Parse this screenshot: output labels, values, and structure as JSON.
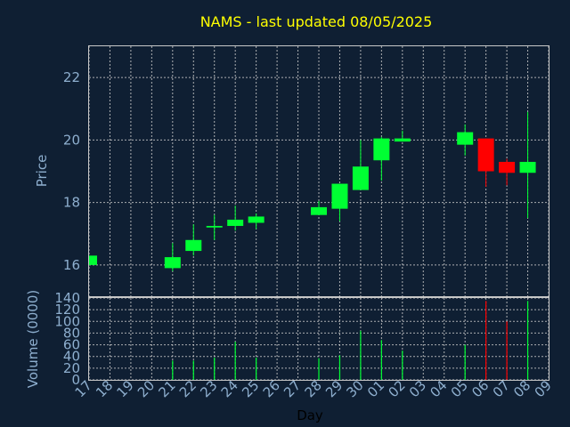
{
  "chart_data": [
    {
      "type": "candlestick",
      "title": "NAMS - last updated 08/05/2025",
      "xlabel": "Day",
      "ylabel": "Price",
      "ylim": [
        15,
        23
      ],
      "yticks": [
        16,
        18,
        20,
        22
      ],
      "grid": true,
      "x_ticks": [
        "17",
        "18",
        "19",
        "20",
        "21",
        "22",
        "23",
        "24",
        "25",
        "26",
        "27",
        "28",
        "29",
        "30",
        "01",
        "02",
        "03",
        "04",
        "05",
        "06",
        "07",
        "08",
        "09"
      ],
      "up_color": "#00ff33",
      "down_color": "#ff0000",
      "candles": [
        {
          "day": "17",
          "open": 16.0,
          "high": 16.3,
          "low": 16.0,
          "close": 16.3
        },
        {
          "day": "21",
          "open": 15.9,
          "high": 16.7,
          "low": 15.8,
          "close": 16.25
        },
        {
          "day": "22",
          "open": 16.45,
          "high": 17.3,
          "low": 16.3,
          "close": 16.8
        },
        {
          "day": "23",
          "open": 17.2,
          "high": 17.6,
          "low": 16.8,
          "close": 17.25
        },
        {
          "day": "24",
          "open": 17.25,
          "high": 17.9,
          "low": 17.1,
          "close": 17.45
        },
        {
          "day": "25",
          "open": 17.35,
          "high": 17.65,
          "low": 17.15,
          "close": 17.55
        },
        {
          "day": "28",
          "open": 17.6,
          "high": 18.05,
          "low": 17.6,
          "close": 17.85
        },
        {
          "day": "29",
          "open": 17.8,
          "high": 18.6,
          "low": 17.4,
          "close": 18.6
        },
        {
          "day": "30",
          "open": 18.4,
          "high": 20.0,
          "low": 18.4,
          "close": 19.15
        },
        {
          "day": "01",
          "open": 19.35,
          "high": 20.1,
          "low": 18.7,
          "close": 20.05
        },
        {
          "day": "02",
          "open": 19.95,
          "high": 20.3,
          "low": 19.95,
          "close": 20.05
        },
        {
          "day": "05",
          "open": 19.85,
          "high": 20.5,
          "low": 19.5,
          "close": 20.25
        },
        {
          "day": "06",
          "open": 20.05,
          "high": 20.05,
          "low": 18.5,
          "close": 19.0
        },
        {
          "day": "07",
          "open": 19.3,
          "high": 19.4,
          "low": 18.55,
          "close": 18.95
        },
        {
          "day": "08",
          "open": 18.95,
          "high": 20.9,
          "low": 17.5,
          "close": 19.3
        }
      ]
    },
    {
      "type": "bar",
      "ylabel": "Volume (0000)",
      "ylim": [
        0,
        140
      ],
      "yticks": [
        0,
        20,
        40,
        60,
        80,
        100,
        120,
        140
      ],
      "grid": true,
      "categories": [
        "21",
        "22",
        "23",
        "24",
        "25",
        "28",
        "29",
        "30",
        "01",
        "02",
        "05",
        "06",
        "07",
        "08"
      ],
      "values": [
        33,
        33,
        38,
        65,
        38,
        37,
        42,
        84,
        68,
        50,
        60,
        135,
        100,
        135
      ],
      "colors": [
        "#00ff33",
        "#00ff33",
        "#00ff33",
        "#00ff33",
        "#00ff33",
        "#00ff33",
        "#00ff33",
        "#00ff33",
        "#00ff33",
        "#00ff33",
        "#00ff33",
        "#ff0000",
        "#ff0000",
        "#00ff33"
      ]
    }
  ]
}
